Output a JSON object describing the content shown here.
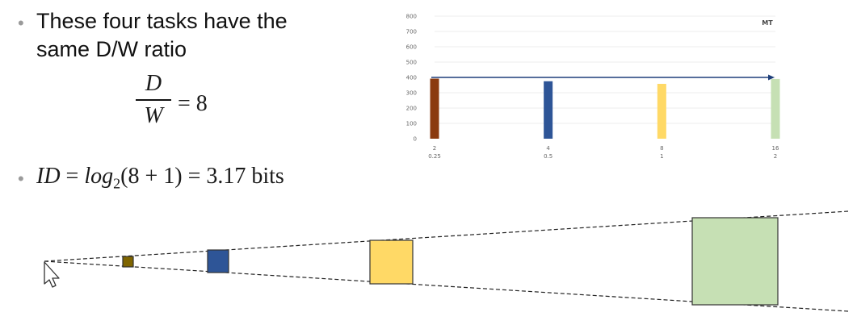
{
  "bullets": {
    "first_line1": "These four tasks have the",
    "first_line2": "same D/W ratio",
    "fraction": {
      "numerator": "D",
      "denominator": "W",
      "equals": "= 8"
    },
    "id_formula": {
      "lhs": "ID",
      "eq1": " = ",
      "func": "log",
      "sub": "2",
      "arg": "(8 + 1)",
      "eq2": " = 3.17 bits"
    }
  },
  "chart_data": {
    "type": "bar",
    "categories": [
      "2",
      "4",
      "8",
      "16"
    ],
    "sub_labels": [
      "0.25",
      "0.5",
      "1",
      "2"
    ],
    "series": [
      {
        "name": "MT",
        "values": [
          392,
          375,
          358,
          390
        ]
      }
    ],
    "bar_colors": [
      "#8b3a0f",
      "#2e5597",
      "#ffd966",
      "#c6e0b4"
    ],
    "yticks": [
      0,
      100,
      200,
      300,
      400,
      500,
      600,
      700,
      800
    ],
    "ylim": [
      0,
      800
    ],
    "reference_line": 400,
    "reference_line_color": "#1f3f7a",
    "legend": "MT"
  },
  "targets": {
    "colors": [
      "#7f6500",
      "#2e5597",
      "#ffd966",
      "#c6e0b4"
    ],
    "stroke": "#333333"
  }
}
